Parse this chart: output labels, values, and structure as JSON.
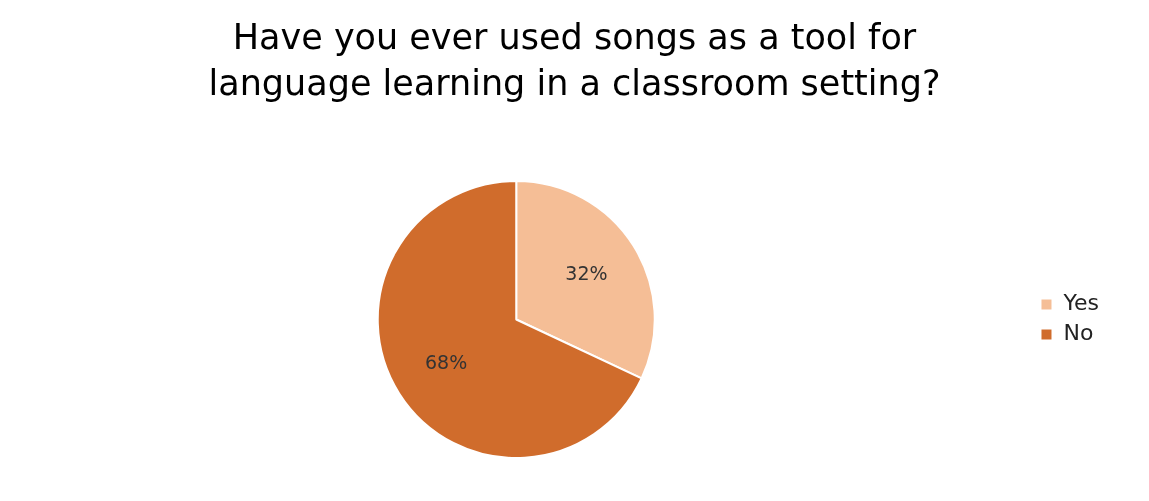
{
  "chart_data": {
    "type": "pie",
    "title": "Have you ever used songs as a tool for language learning in a classroom setting?",
    "categories": [
      "Yes",
      "No"
    ],
    "values": [
      32,
      68
    ],
    "value_labels": [
      "32%",
      "68%"
    ],
    "colors": [
      "#f5be96",
      "#d06c2c"
    ],
    "legend": "right"
  }
}
